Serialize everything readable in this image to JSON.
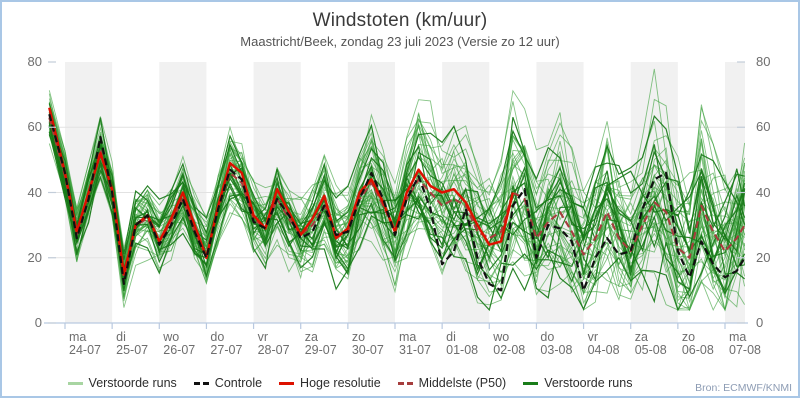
{
  "frame": {
    "border_color": "#a9c7e6",
    "background": "#ffffff",
    "bottom_edge_color": "#000000"
  },
  "header": {
    "title": "Windstoten (km/uur)",
    "subtitle": "Maastricht/Beek, zondag 23 juli 2023 (Versie zo 12 uur)"
  },
  "source": "Bron: ECMWF/KNMI",
  "legend": [
    {
      "label": "Verstoorde runs",
      "color": "#a8d5a2",
      "style": "solid"
    },
    {
      "label": "Controle",
      "color": "#111111",
      "style": "dashed"
    },
    {
      "label": "Hoge resolutie",
      "color": "#dd1100",
      "style": "solid"
    },
    {
      "label": "Middelste (P50)",
      "color": "#a63d3d",
      "style": "dashed"
    },
    {
      "label": "Verstoorde runs",
      "color": "#1a7d1a",
      "style": "solid"
    }
  ],
  "chart_data": {
    "type": "line",
    "title": "Windstoten (km/uur)",
    "subtitle": "Maastricht/Beek, zondag 23 juli 2023 (Versie zo 12 uur)",
    "xlabel": "",
    "ylabel": "km/uur",
    "ylim": [
      0,
      80
    ],
    "y_ticks": [
      0,
      20,
      40,
      60,
      80
    ],
    "grid_values": [
      20,
      40,
      60
    ],
    "x_domain_hours": [
      -9,
      346
    ],
    "x_ticks": [
      {
        "day": "ma",
        "date": "24-07",
        "hour": 0
      },
      {
        "day": "di",
        "date": "25-07",
        "hour": 24
      },
      {
        "day": "wo",
        "date": "26-07",
        "hour": 48
      },
      {
        "day": "do",
        "date": "27-07",
        "hour": 72
      },
      {
        "day": "vr",
        "date": "28-07",
        "hour": 96
      },
      {
        "day": "za",
        "date": "29-07",
        "hour": 120
      },
      {
        "day": "zo",
        "date": "30-07",
        "hour": 144
      },
      {
        "day": "ma",
        "date": "31-07",
        "hour": 168
      },
      {
        "day": "di",
        "date": "01-08",
        "hour": 192
      },
      {
        "day": "wo",
        "date": "02-08",
        "hour": 216
      },
      {
        "day": "do",
        "date": "03-08",
        "hour": 240
      },
      {
        "day": "vr",
        "date": "04-08",
        "hour": 264
      },
      {
        "day": "za",
        "date": "05-08",
        "hour": 288
      },
      {
        "day": "zo",
        "date": "06-08",
        "hour": 312
      },
      {
        "day": "ma",
        "date": "07-08",
        "hour": 336
      }
    ],
    "shaded_tick_indices": [
      0,
      2,
      4,
      6,
      8,
      10,
      12,
      14
    ],
    "band_color": "#f1f1f1",
    "grid_color": "#e2e2e2",
    "axis_color": "#b9c9e0",
    "tick_dash_color": "#c3cdd9",
    "time_hours": [
      -8,
      0,
      6,
      12,
      18,
      24,
      30,
      36,
      42,
      48,
      54,
      60,
      66,
      72,
      78,
      84,
      90,
      96,
      102,
      108,
      114,
      120,
      126,
      132,
      138,
      144,
      150,
      156,
      162,
      168,
      174,
      180,
      186,
      192,
      198,
      204,
      210,
      216,
      222,
      228,
      234,
      240,
      246,
      252,
      258,
      264,
      270,
      276,
      282,
      288,
      294,
      300,
      306,
      312,
      318,
      324,
      330,
      336,
      342,
      346
    ],
    "series": [
      {
        "name": "Middelste (P50)",
        "color": "#a63d3d",
        "dash": "7 4",
        "width": 2.1,
        "values": [
          63,
          45,
          27,
          39,
          53,
          40,
          14,
          30,
          32,
          25,
          31,
          38,
          28,
          21,
          35,
          46,
          43,
          32,
          29,
          38,
          32,
          27,
          30,
          36,
          27,
          28,
          38,
          43,
          36,
          28,
          38,
          44,
          40,
          36,
          38,
          36,
          28,
          26,
          28,
          40,
          38,
          26,
          31,
          34,
          28,
          21,
          26,
          34,
          26,
          22,
          30,
          37,
          34,
          23,
          20,
          36,
          28,
          22,
          26,
          30
        ]
      },
      {
        "name": "Hoge resolutie",
        "color": "#dd1100",
        "dash": null,
        "width": 2.5,
        "values": [
          66,
          46,
          28,
          40,
          52,
          41,
          15,
          30,
          33,
          25,
          32,
          40,
          30,
          20,
          36,
          49,
          46,
          33,
          29,
          41,
          34,
          27,
          32,
          39,
          26,
          29,
          40,
          44,
          37,
          28,
          40,
          47,
          42,
          40,
          41,
          37,
          30,
          24,
          25,
          40
        ]
      },
      {
        "name": "Controle",
        "color": "#111111",
        "dash": "7 4",
        "width": 2.2,
        "values": [
          64,
          46,
          26,
          38,
          57,
          40,
          12,
          30,
          33,
          24,
          30,
          38,
          28,
          20,
          35,
          47,
          44,
          31,
          29,
          38,
          33,
          26,
          28,
          36,
          27,
          28,
          38,
          46,
          38,
          27,
          38,
          45,
          35,
          18,
          22,
          35,
          20,
          12,
          10,
          36,
          41,
          20,
          30,
          29,
          25,
          10,
          20,
          26,
          21,
          22,
          35,
          44,
          46,
          22,
          14,
          25,
          18,
          14,
          16,
          20
        ]
      }
    ],
    "ensemble": {
      "name": "Verstoorde runs",
      "light": {
        "count": 40,
        "color": "#3aa03a",
        "opacity": 0.62,
        "width": 0.9
      },
      "dark": {
        "count": 11,
        "color": "#187a18",
        "opacity": 0.92,
        "width": 1.2
      },
      "seed": 20230723,
      "spread_start": 6,
      "spread_end": 20,
      "clip_min": 4,
      "clip_max": 79
    }
  }
}
